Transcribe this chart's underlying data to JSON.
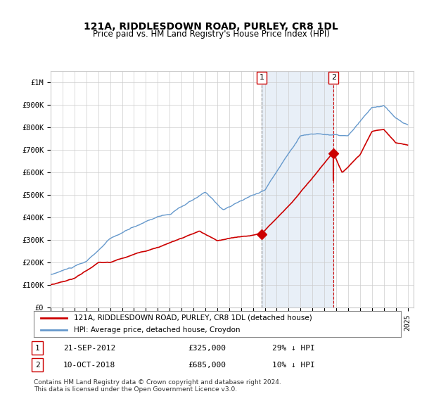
{
  "title": "121A, RIDDLESDOWN ROAD, PURLEY, CR8 1DL",
  "subtitle": "Price paid vs. HM Land Registry's House Price Index (HPI)",
  "legend_line1": "121A, RIDDLESDOWN ROAD, PURLEY, CR8 1DL (detached house)",
  "legend_line2": "HPI: Average price, detached house, Croydon",
  "footnote": "Contains HM Land Registry data © Crown copyright and database right 2024.\nThis data is licensed under the Open Government Licence v3.0.",
  "transaction1": {
    "label": "1",
    "date": "21-SEP-2012",
    "price": 325000,
    "note": "29% ↓ HPI"
  },
  "transaction2": {
    "label": "2",
    "date": "10-OCT-2018",
    "price": 685000,
    "note": "10% ↓ HPI"
  },
  "ylim": [
    0,
    1050000
  ],
  "start_year": 1995,
  "end_year": 2025,
  "red_color": "#cc0000",
  "blue_color": "#6699cc",
  "highlight_color": "#ddeeff",
  "grid_color": "#cccccc",
  "background_color": "#ffffff"
}
